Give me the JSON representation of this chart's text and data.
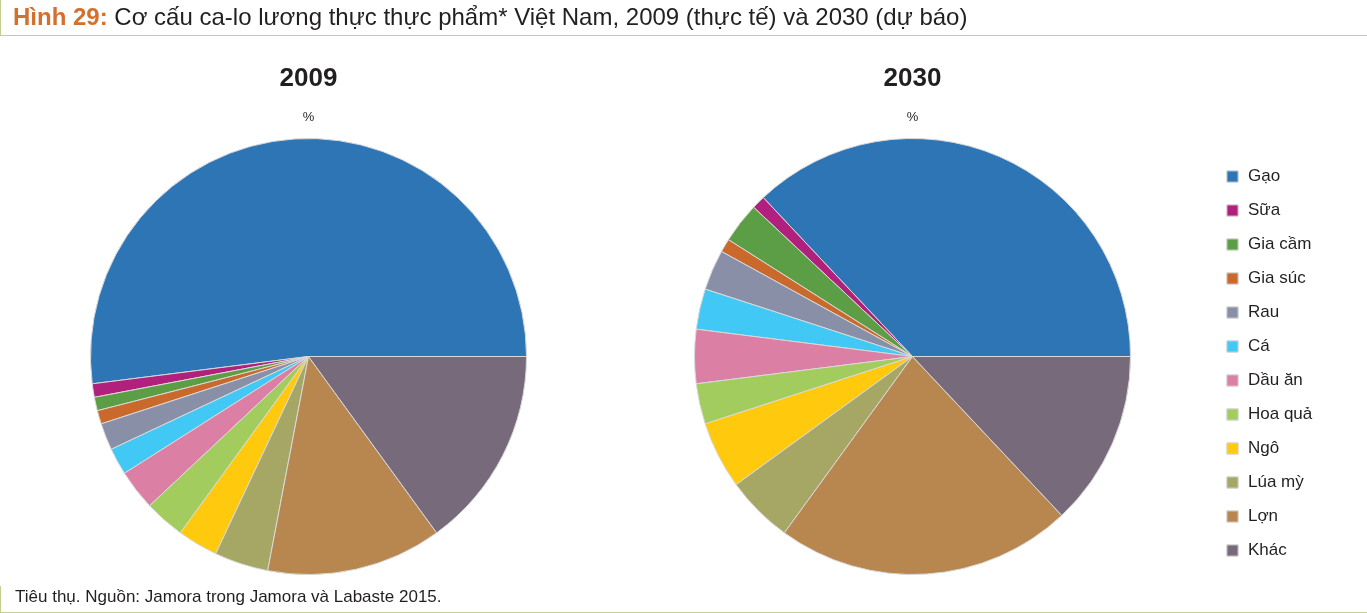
{
  "chart_data": {
    "type": "pie",
    "title": "Hình 29: Cơ cấu ca-lo lương thực thực phẩm* Việt Nam, 2009 (thực tế) và 2030 (dự báo)",
    "ylabel": "%",
    "categories": [
      "Gạo",
      "Sữa",
      "Gia cầm",
      "Gia súc",
      "Rau",
      "Cá",
      "Dầu ăn",
      "Hoa quả",
      "Ngô",
      "Lúa mỳ",
      "Lợn",
      "Khác"
    ],
    "colors": [
      "#2e75b6",
      "#b2207e",
      "#5b9e46",
      "#c9692b",
      "#8a8fa8",
      "#41c8f4",
      "#db7fa5",
      "#a3cc5f",
      "#ffc90d",
      "#a7a765",
      "#b8864f",
      "#776a7b"
    ],
    "series": [
      {
        "name": "2009",
        "values": [
          52,
          1,
          1,
          1,
          2,
          2,
          3,
          3,
          3,
          4,
          13,
          15
        ]
      },
      {
        "name": "2030",
        "values": [
          37,
          1,
          3,
          1,
          3,
          3,
          4,
          3,
          5,
          5,
          22,
          13
        ]
      }
    ],
    "legend": "right",
    "annotations": [
      "Tiêu thụ. Nguồn: Jamora trong Jamora và Labaste 2015."
    ]
  }
}
